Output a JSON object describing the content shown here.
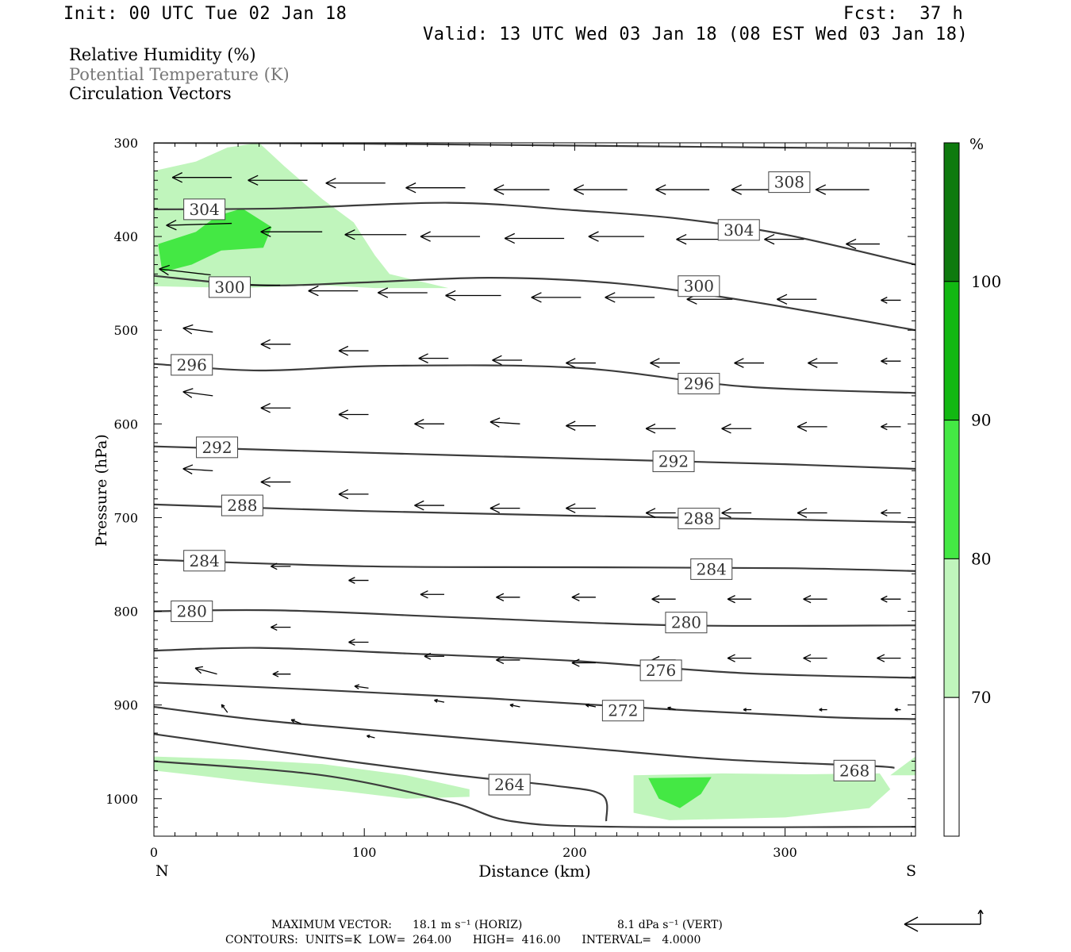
{
  "header": {
    "init": "Init: 00 UTC Tue 02 Jan 18",
    "fcst": "Fcst:  37 h",
    "valid": "Valid: 13 UTC Wed 03 Jan 18 (08 EST Wed 03 Jan 18)"
  },
  "legend": {
    "line1": "Relative Humidity (%)",
    "line2": "Potential Temperature (K)",
    "line3": "Circulation Vectors",
    "colors": {
      "line1": "#000000",
      "line2": "#777777",
      "line3": "#000000"
    }
  },
  "axes": {
    "ylabel": "Pressure (hPa)",
    "xlabel": "Distance (km)",
    "x_left_end": "N",
    "x_right_end": "S"
  },
  "footer": {
    "max_vector_label": "MAXIMUM VECTOR:",
    "max_vector_horiz": "18.1 m s⁻¹ (HORIZ)",
    "max_vector_vert": "8.1 dPa s⁻¹ (VERT)",
    "contours": "CONTOURS:  UNITS=K  LOW=  264.00      HIGH=  416.00      INTERVAL=   4.0000"
  },
  "chart_data": {
    "type": "contour",
    "xlim": [
      0,
      362
    ],
    "ylim": [
      300,
      1040
    ],
    "y_inverted": true,
    "x_ticks": [
      0,
      100,
      200,
      300
    ],
    "y_ticks": [
      300,
      400,
      500,
      600,
      700,
      800,
      900,
      1000
    ],
    "colorbar": {
      "unit": "%",
      "levels": [
        70,
        80,
        90,
        100
      ],
      "colors": [
        "#ffffff",
        "#c0f5bc",
        "#44e844",
        "#12b812",
        "#0e7a0e"
      ]
    },
    "contour_color": "#3c3c3c",
    "isentropes": [
      {
        "value": "308",
        "label_at": [
          302,
          342
        ],
        "points": [
          [
            0,
            300
          ],
          [
            100,
            301
          ],
          [
            200,
            303
          ],
          [
            290,
            305
          ],
          [
            362,
            306
          ]
        ]
      },
      {
        "value": "304",
        "label_at": [
          24,
          371
        ],
        "points": [
          [
            0,
            371
          ],
          [
            60,
            370
          ],
          [
            140,
            364
          ],
          [
            200,
            372
          ],
          [
            250,
            381
          ],
          [
            300,
            398
          ],
          [
            362,
            430
          ]
        ]
      },
      {
        "value": "304",
        "label_at": [
          278,
          393
        ],
        "points": []
      },
      {
        "value": "300",
        "label_at": [
          36,
          454
        ],
        "points": [
          [
            0,
            442
          ],
          [
            50,
            452
          ],
          [
            100,
            449
          ],
          [
            160,
            444
          ],
          [
            220,
            450
          ],
          [
            280,
            468
          ],
          [
            362,
            500
          ]
        ]
      },
      {
        "value": "300",
        "label_at": [
          259,
          453
        ],
        "points": []
      },
      {
        "value": "296",
        "label_at": [
          18,
          537
        ],
        "points": [
          [
            0,
            536
          ],
          [
            50,
            543
          ],
          [
            110,
            538
          ],
          [
            200,
            540
          ],
          [
            280,
            560
          ],
          [
            362,
            567
          ]
        ]
      },
      {
        "value": "296",
        "label_at": [
          259,
          557
        ],
        "points": []
      },
      {
        "value": "292",
        "label_at": [
          30,
          625
        ],
        "points": [
          [
            0,
            624
          ],
          [
            90,
            630
          ],
          [
            200,
            637
          ],
          [
            300,
            643
          ],
          [
            362,
            648
          ]
        ]
      },
      {
        "value": "292",
        "label_at": [
          247,
          640
        ],
        "points": []
      },
      {
        "value": "288",
        "label_at": [
          42,
          687
        ],
        "points": [
          [
            0,
            686
          ],
          [
            100,
            693
          ],
          [
            200,
            698
          ],
          [
            300,
            702
          ],
          [
            362,
            705
          ]
        ]
      },
      {
        "value": "288",
        "label_at": [
          259,
          701
        ],
        "points": []
      },
      {
        "value": "284",
        "label_at": [
          24,
          746
        ],
        "points": [
          [
            0,
            745
          ],
          [
            100,
            752
          ],
          [
            200,
            753
          ],
          [
            300,
            754
          ],
          [
            362,
            757
          ]
        ]
      },
      {
        "value": "284",
        "label_at": [
          265,
          755
        ],
        "points": []
      },
      {
        "value": "280",
        "label_at": [
          18,
          800
        ],
        "points": [
          [
            0,
            800
          ],
          [
            60,
            799
          ],
          [
            150,
            807
          ],
          [
            250,
            815
          ],
          [
            362,
            815
          ]
        ]
      },
      {
        "value": "280",
        "label_at": [
          253,
          812
        ],
        "points": []
      },
      {
        "value": "276",
        "label_at": [
          241,
          863
        ],
        "points": [
          [
            0,
            842
          ],
          [
            50,
            839
          ],
          [
            120,
            845
          ],
          [
            200,
            853
          ],
          [
            280,
            866
          ],
          [
            362,
            871
          ]
        ]
      },
      {
        "value": "272",
        "label_at": [
          223,
          906
        ],
        "points": [
          [
            0,
            876
          ],
          [
            80,
            884
          ],
          [
            160,
            893
          ],
          [
            240,
            904
          ],
          [
            320,
            913
          ],
          [
            362,
            915
          ]
        ]
      },
      {
        "value": "268",
        "label_at": [
          333,
          970
        ],
        "points": [
          [
            0,
            902
          ],
          [
            50,
            916
          ],
          [
            120,
            930
          ],
          [
            200,
            945
          ],
          [
            270,
            958
          ],
          [
            340,
            965
          ],
          [
            352,
            967
          ]
        ]
      },
      {
        "value": "264",
        "label_at": [
          169,
          985
        ],
        "points": [
          [
            0,
            931
          ],
          [
            60,
            950
          ],
          [
            140,
            974
          ],
          [
            190,
            986
          ],
          [
            213,
            996
          ],
          [
            215,
            1024
          ]
        ]
      },
      {
        "value": "",
        "label_at": null,
        "points": [
          [
            0,
            960
          ],
          [
            80,
            975
          ],
          [
            140,
            1003
          ],
          [
            170,
            1024
          ],
          [
            220,
            1030
          ],
          [
            362,
            1030
          ]
        ]
      }
    ],
    "rh_shading": [
      {
        "level": "70-80",
        "color": "#c0f5bc",
        "polygon": [
          [
            0,
            330
          ],
          [
            20,
            320
          ],
          [
            35,
            305
          ],
          [
            50,
            300
          ],
          [
            62,
            325
          ],
          [
            80,
            360
          ],
          [
            95,
            385
          ],
          [
            105,
            420
          ],
          [
            112,
            440
          ],
          [
            140,
            455
          ],
          [
            105,
            455
          ],
          [
            80,
            452
          ],
          [
            40,
            455
          ],
          [
            0,
            453
          ]
        ]
      },
      {
        "level": "80-90",
        "color": "#44e844",
        "polygon": [
          [
            2,
            408
          ],
          [
            20,
            395
          ],
          [
            30,
            378
          ],
          [
            42,
            370
          ],
          [
            56,
            390
          ],
          [
            52,
            412
          ],
          [
            32,
            415
          ],
          [
            18,
            430
          ],
          [
            4,
            438
          ]
        ]
      },
      {
        "level": "70-80",
        "color": "#c0f5bc",
        "polygon": [
          [
            0,
            955
          ],
          [
            40,
            958
          ],
          [
            80,
            963
          ],
          [
            120,
            975
          ],
          [
            150,
            990
          ],
          [
            150,
            998
          ],
          [
            120,
            1000
          ],
          [
            90,
            992
          ],
          [
            50,
            983
          ],
          [
            20,
            975
          ],
          [
            0,
            970
          ]
        ]
      },
      {
        "level": "70-80",
        "color": "#c0f5bc",
        "polygon": [
          [
            228,
            975
          ],
          [
            270,
            973
          ],
          [
            310,
            974
          ],
          [
            345,
            973
          ],
          [
            350,
            990
          ],
          [
            340,
            1010
          ],
          [
            300,
            1020
          ],
          [
            245,
            1023
          ],
          [
            228,
            1015
          ]
        ]
      },
      {
        "level": "80-90",
        "color": "#44e844",
        "polygon": [
          [
            235,
            978
          ],
          [
            265,
            977
          ],
          [
            260,
            995
          ],
          [
            250,
            1010
          ],
          [
            240,
            1000
          ]
        ]
      },
      {
        "level": "70-80",
        "color": "#c0f5bc",
        "polygon": [
          [
            350,
            975
          ],
          [
            362,
            955
          ],
          [
            362,
            975
          ]
        ]
      }
    ],
    "vectors": [
      {
        "x": 37,
        "p": 337,
        "u": -30,
        "w": 0
      },
      {
        "x": 73,
        "p": 340,
        "u": -30,
        "w": 0
      },
      {
        "x": 110,
        "p": 343,
        "u": -30,
        "w": 0
      },
      {
        "x": 148,
        "p": 348,
        "u": -30,
        "w": 0
      },
      {
        "x": 188,
        "p": 350,
        "u": -28,
        "w": 0
      },
      {
        "x": 225,
        "p": 350,
        "u": -27,
        "w": 0
      },
      {
        "x": 264,
        "p": 350,
        "u": -27,
        "w": 0
      },
      {
        "x": 300,
        "p": 350,
        "u": -27,
        "w": 0
      },
      {
        "x": 340,
        "p": 350,
        "u": -27,
        "w": 0
      },
      {
        "x": 37,
        "p": 386,
        "u": -33,
        "w": -1
      },
      {
        "x": 80,
        "p": 395,
        "u": -31,
        "w": 0
      },
      {
        "x": 120,
        "p": 398,
        "u": -31,
        "w": 0
      },
      {
        "x": 155,
        "p": 400,
        "u": -30,
        "w": 0
      },
      {
        "x": 195,
        "p": 402,
        "u": -30,
        "w": 0
      },
      {
        "x": 233,
        "p": 400,
        "u": -28,
        "w": 0
      },
      {
        "x": 270,
        "p": 403,
        "u": -23,
        "w": 0
      },
      {
        "x": 309,
        "p": 403,
        "u": -20,
        "w": 0
      },
      {
        "x": 345,
        "p": 408,
        "u": -17,
        "w": 0
      },
      {
        "x": 27,
        "p": 441,
        "u": -26,
        "w": 3
      },
      {
        "x": 60,
        "p": 452,
        "u": -25,
        "w": 0
      },
      {
        "x": 97,
        "p": 458,
        "u": -25,
        "w": 0
      },
      {
        "x": 130,
        "p": 460,
        "u": -25,
        "w": 0
      },
      {
        "x": 165,
        "p": 463,
        "u": -28,
        "w": 0
      },
      {
        "x": 203,
        "p": 465,
        "u": -25,
        "w": 0
      },
      {
        "x": 238,
        "p": 465,
        "u": -25,
        "w": 0
      },
      {
        "x": 275,
        "p": 467,
        "u": -23,
        "w": 0
      },
      {
        "x": 315,
        "p": 467,
        "u": -20,
        "w": 0
      },
      {
        "x": 355,
        "p": 468,
        "u": -10,
        "w": 0
      },
      {
        "x": 28,
        "p": 502,
        "u": -15,
        "w": 2
      },
      {
        "x": 65,
        "p": 515,
        "u": -15,
        "w": 0
      },
      {
        "x": 102,
        "p": 522,
        "u": -15,
        "w": 0
      },
      {
        "x": 140,
        "p": 530,
        "u": -15,
        "w": 0
      },
      {
        "x": 175,
        "p": 532,
        "u": -15,
        "w": 0
      },
      {
        "x": 210,
        "p": 535,
        "u": -15,
        "w": 0
      },
      {
        "x": 250,
        "p": 535,
        "u": -15,
        "w": 0
      },
      {
        "x": 290,
        "p": 535,
        "u": -15,
        "w": 0
      },
      {
        "x": 325,
        "p": 535,
        "u": -15,
        "w": 0
      },
      {
        "x": 355,
        "p": 533,
        "u": -10,
        "w": 0
      },
      {
        "x": 28,
        "p": 570,
        "u": -15,
        "w": 2
      },
      {
        "x": 65,
        "p": 583,
        "u": -15,
        "w": 0
      },
      {
        "x": 102,
        "p": 590,
        "u": -15,
        "w": 0
      },
      {
        "x": 138,
        "p": 600,
        "u": -15,
        "w": 0
      },
      {
        "x": 174,
        "p": 600,
        "u": -15,
        "w": 1
      },
      {
        "x": 210,
        "p": 602,
        "u": -15,
        "w": 0
      },
      {
        "x": 248,
        "p": 605,
        "u": -15,
        "w": 0
      },
      {
        "x": 284,
        "p": 605,
        "u": -15,
        "w": 0
      },
      {
        "x": 320,
        "p": 603,
        "u": -15,
        "w": 0
      },
      {
        "x": 355,
        "p": 603,
        "u": -10,
        "w": 0
      },
      {
        "x": 28,
        "p": 650,
        "u": -15,
        "w": 1
      },
      {
        "x": 65,
        "p": 662,
        "u": -15,
        "w": 0
      },
      {
        "x": 102,
        "p": 675,
        "u": -15,
        "w": 0
      },
      {
        "x": 138,
        "p": 687,
        "u": -15,
        "w": 0
      },
      {
        "x": 174,
        "p": 690,
        "u": -15,
        "w": 0
      },
      {
        "x": 210,
        "p": 690,
        "u": -15,
        "w": 0
      },
      {
        "x": 248,
        "p": 695,
        "u": -15,
        "w": 0
      },
      {
        "x": 284,
        "p": 695,
        "u": -15,
        "w": 0
      },
      {
        "x": 320,
        "p": 695,
        "u": -15,
        "w": 0
      },
      {
        "x": 355,
        "p": 695,
        "u": -10,
        "w": 0
      },
      {
        "x": 32,
        "p": 745,
        "u": -10,
        "w": 0
      },
      {
        "x": 65,
        "p": 752,
        "u": -10,
        "w": 0
      },
      {
        "x": 102,
        "p": 767,
        "u": -10,
        "w": 0
      },
      {
        "x": 138,
        "p": 782,
        "u": -12,
        "w": 0
      },
      {
        "x": 174,
        "p": 785,
        "u": -12,
        "w": 0
      },
      {
        "x": 210,
        "p": 785,
        "u": -12,
        "w": 0
      },
      {
        "x": 248,
        "p": 787,
        "u": -12,
        "w": 0
      },
      {
        "x": 284,
        "p": 787,
        "u": -12,
        "w": 0
      },
      {
        "x": 320,
        "p": 787,
        "u": -12,
        "w": 0
      },
      {
        "x": 355,
        "p": 787,
        "u": -10,
        "w": 0
      },
      {
        "x": 28,
        "p": 810,
        "u": -10,
        "w": 2
      },
      {
        "x": 65,
        "p": 817,
        "u": -10,
        "w": 0
      },
      {
        "x": 102,
        "p": 833,
        "u": -10,
        "w": 0
      },
      {
        "x": 138,
        "p": 848,
        "u": -10,
        "w": 0
      },
      {
        "x": 174,
        "p": 852,
        "u": -12,
        "w": 0
      },
      {
        "x": 210,
        "p": 855,
        "u": -12,
        "w": 0
      },
      {
        "x": 248,
        "p": 852,
        "u": -12,
        "w": 0
      },
      {
        "x": 284,
        "p": 850,
        "u": -12,
        "w": 0
      },
      {
        "x": 320,
        "p": 850,
        "u": -12,
        "w": 0
      },
      {
        "x": 355,
        "p": 850,
        "u": -12,
        "w": 0
      },
      {
        "x": 30,
        "p": 867,
        "u": -11,
        "w": 3
      },
      {
        "x": 65,
        "p": 867,
        "u": -9,
        "w": 0
      },
      {
        "x": 102,
        "p": 882,
        "u": -7,
        "w": 1
      },
      {
        "x": 138,
        "p": 897,
        "u": -5,
        "w": 1
      },
      {
        "x": 174,
        "p": 902,
        "u": -5,
        "w": 1
      },
      {
        "x": 210,
        "p": 902,
        "u": -5,
        "w": 1
      },
      {
        "x": 248,
        "p": 905,
        "u": -4,
        "w": 1
      },
      {
        "x": 284,
        "p": 905,
        "u": -4,
        "w": 0
      },
      {
        "x": 320,
        "p": 905,
        "u": -4,
        "w": 0
      },
      {
        "x": 355,
        "p": 905,
        "u": -3,
        "w": 0
      },
      {
        "x": 35,
        "p": 908,
        "u": -3,
        "w": 4
      },
      {
        "x": 70,
        "p": 920,
        "u": -5,
        "w": 2
      },
      {
        "x": 105,
        "p": 935,
        "u": -4,
        "w": 1
      }
    ]
  }
}
